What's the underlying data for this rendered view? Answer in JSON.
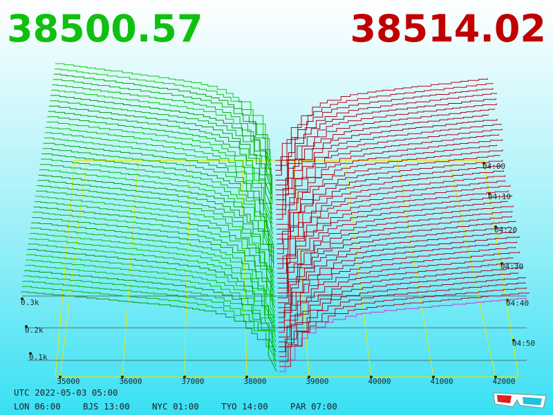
{
  "header": {
    "bid": "38500.57",
    "ask": "38514.02"
  },
  "price_axis": [
    "35000",
    "36000",
    "37000",
    "38000",
    "39000",
    "40000",
    "41000",
    "42000"
  ],
  "depth_axis": [
    "0.3k",
    "0.2k",
    "0.1k"
  ],
  "time_axis": [
    "04:00",
    "04:10",
    "04:20",
    "04:30",
    "04:40",
    "04:50"
  ],
  "footer": {
    "utc": "UTC 2022-05-03 05:00",
    "clocks": [
      "LON 06:00",
      "BJS 13:00",
      "NYC 01:00",
      "TYO 14:00",
      "PAR 07:00"
    ]
  }
}
